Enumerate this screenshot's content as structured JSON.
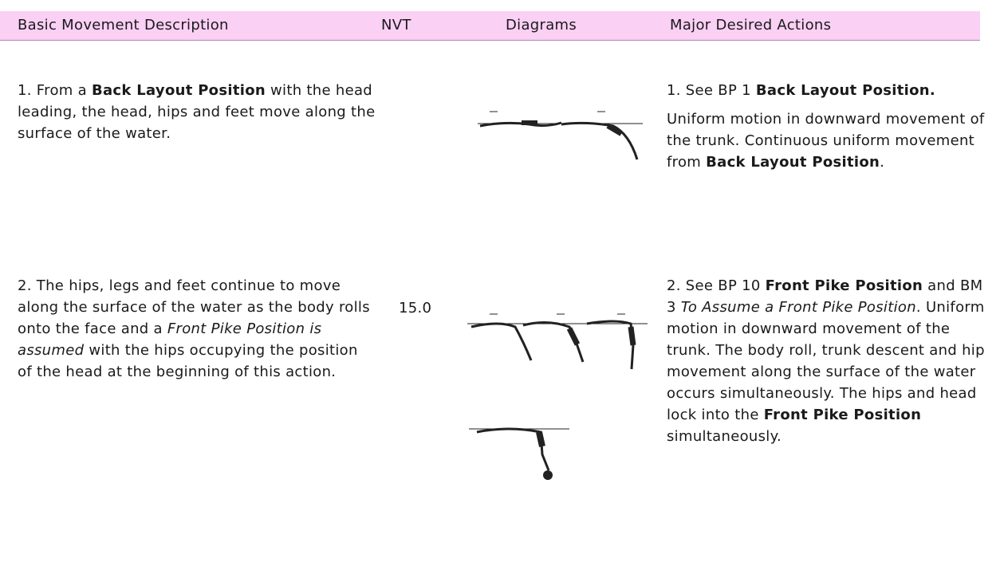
{
  "header": {
    "columns": [
      "Basic Movement Description",
      "NVT",
      "Diagrams",
      "Major Desired Actions"
    ]
  },
  "rows": [
    {
      "description": [
        "1. From a ",
        {
          "b": "Back Layout Position"
        },
        " with the head leading, the head, hips and feet move along the surface of the water."
      ],
      "actions": [
        [
          "1. See BP 1 ",
          {
            "b": "Back Layout Position."
          }
        ],
        [
          "Uniform motion in downward movement of the trunk. Continuous uniform movement from ",
          {
            "b": "Back Layout Position"
          },
          "."
        ]
      ]
    },
    {
      "description": [
        "2. The hips, legs and feet continue to move along the surface of the water as the body rolls onto the face and a ",
        {
          "i": "Front Pike Position is assumed"
        },
        " with the hips occupying the position of the head at the beginning of this action."
      ],
      "nvt": "15.0",
      "actions": [
        [
          "2. See BP 10 ",
          {
            "b": "Front Pike Position"
          },
          " and BM 3 ",
          {
            "i": "To Assume a Front Pike Position"
          },
          ". Uniform motion in downward movement of the trunk. The body roll, trunk descent and hip movement along the surface of the water occurs simultaneously. The hips and head lock into the ",
          {
            "b": "Front Pike Position"
          },
          " simultaneously."
        ]
      ]
    }
  ]
}
